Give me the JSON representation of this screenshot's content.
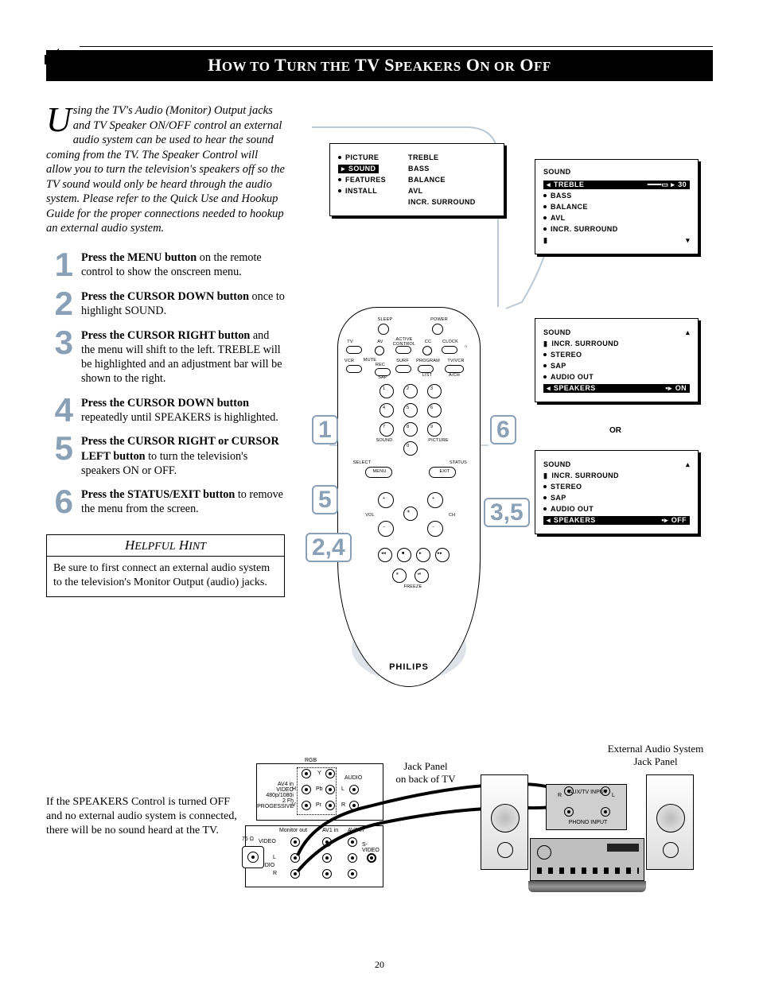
{
  "page_number": "20",
  "title_html": "H<span class='sc'>OW TO</span> T<span class='sc'>URN THE</span> TV S<span class='sc'>PEAKERS</span> O<span class='sc'>N OR</span> O<span class='sc'>FF</span>",
  "intro_first_word_rest": "sing the TV's Audio (Monitor) Output jacks and TV Speaker ON/OFF control an external audio system can be used to hear the sound coming from the TV. The Speaker Control will allow you to turn the television's speakers off so the TV sound would only be heard through the audio system. Please refer to the Quick Use and Hookup Guide for the proper connections needed to hookup an external audio system.",
  "dropcap": "U",
  "steps": [
    {
      "n": "1",
      "bold": "Press the MENU button",
      "rest": " on the remote control to show the onscreen menu."
    },
    {
      "n": "2",
      "bold": "Press the CURSOR DOWN button",
      "rest": " once to highlight SOUND."
    },
    {
      "n": "3",
      "bold": "Press the CURSOR RIGHT button",
      "rest": " and the menu will shift to the left. TREBLE will be highlighted and an adjustment bar will be shown to the right."
    },
    {
      "n": "4",
      "bold": "Press the CURSOR DOWN button",
      "rest": " repeatedly until SPEAKERS is highlighted."
    },
    {
      "n": "5",
      "bold": "Press the CURSOR RIGHT or CURSOR LEFT button",
      "rest": " to turn the television's speakers ON or OFF."
    },
    {
      "n": "6",
      "bold": "Press the STATUS/EXIT button",
      "rest": " to remove the menu from the screen."
    }
  ],
  "hint": {
    "title_html": "H<span class='sc'>ELPFUL</span> H<span class='sc'>INT</span>",
    "body": "Be sure to first connect an external audio system to the television's Monitor Output (audio) jacks."
  },
  "footer_note": "If the SPEAKERS Control is turned OFF and no external audio system is connected, there will be no sound heard at the TV.",
  "brand": "PHILIPS",
  "or_label": "OR",
  "bubbles": {
    "b1": "1",
    "b24": "2,4",
    "b35": "3,5",
    "b5": "5",
    "b6": "6"
  },
  "osd_main": {
    "left": [
      "PICTURE",
      "SOUND",
      "FEATURES",
      "INSTALL"
    ],
    "left_hl_index": 1,
    "right": [
      "TREBLE",
      "BASS",
      "BALANCE",
      "AVL",
      "INCR. SURROUND"
    ]
  },
  "osd_sound_treble": {
    "title": "SOUND",
    "items": [
      "TREBLE",
      "BASS",
      "BALANCE",
      "AVL",
      "INCR. SURROUND"
    ],
    "hl_index": 0,
    "value": "30"
  },
  "osd_sound_on": {
    "title": "SOUND",
    "items": [
      "INCR. SURROUND",
      "STEREO",
      "SAP",
      "AUDIO OUT",
      "SPEAKERS"
    ],
    "hl_index": 4,
    "value": "ON"
  },
  "osd_sound_off": {
    "title": "SOUND",
    "items": [
      "INCR. SURROUND",
      "STEREO",
      "SAP",
      "AUDIO OUT",
      "SPEAKERS"
    ],
    "hl_index": 4,
    "value": "OFF"
  },
  "remote_labels": {
    "sleep": "SLEEP",
    "power": "POWER",
    "tv": "TV",
    "av": "AV",
    "active": "ACTIVE CONTROL",
    "cc": "CC",
    "clock": "CLOCK",
    "vcr": "VCR",
    "mute": "MUTE",
    "rec": "REC",
    "surf": "SURF",
    "program": "PROGRAM",
    "tvvcr": "TV/VCR",
    "sap": "SAP",
    "avcm": "A/CH",
    "list": "LIST",
    "sound": "SOUND",
    "picture": "PICTURE",
    "menu": "MENU",
    "exit": "EXIT",
    "select": "SELECT",
    "status": "STATUS",
    "vol": "VOL",
    "ch": "CH",
    "freeze": "FREEZE"
  },
  "jack_panel": {
    "caption": "Jack Panel\non back of TV",
    "rgb": "RGB",
    "av4": "AV4 in\nVIDEO 480p/1080i\n2 Fh PROGESSIVE",
    "audio": "AUDIO",
    "monitor": "Monitor out",
    "av1": "AV1 in",
    "av2": "AV2 in",
    "video": "VIDEO",
    "svideo": "S- VIDEO",
    "l": "L",
    "r": "R",
    "y": "Y",
    "pr": "Pr",
    "pb": "Pb",
    "75": "75 Ω"
  },
  "ext_panel": {
    "caption": "External Audio System\nJack Panel",
    "aux": "AUX/TV INPUT",
    "phono": "PHONO INPUT",
    "l": "L",
    "r": "R"
  },
  "colors": {
    "accent": "#8aa0b6",
    "black": "#000000",
    "white": "#ffffff",
    "grey": "#bfbfbf"
  }
}
